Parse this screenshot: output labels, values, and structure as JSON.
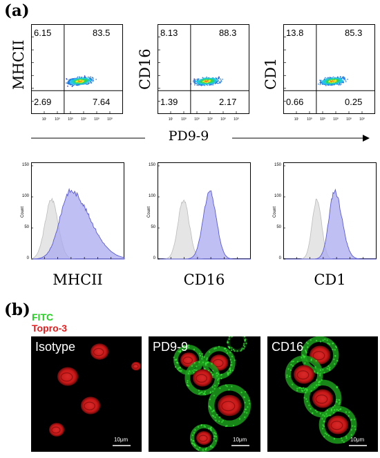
{
  "panel_a_label": "(a)",
  "panel_b_label": "(b)",
  "scatter_axis_label": "PD9-9",
  "dotplots": [
    {
      "ylabel": "MHCII",
      "q_ul": "6.15",
      "q_ur": "83.5",
      "q_ll": "2.69",
      "q_lr": "7.64"
    },
    {
      "ylabel": "CD16",
      "q_ul": "8.13",
      "q_ur": "88.3",
      "q_ll": "1.39",
      "q_lr": "2.17"
    },
    {
      "ylabel": "CD1",
      "q_ul": "13.8",
      "q_ur": "85.3",
      "q_ll": "0.66",
      "q_lr": "0.25"
    }
  ],
  "histograms": [
    {
      "xlabel": "MHCII",
      "ylabel": "Count"
    },
    {
      "xlabel": "CD16",
      "ylabel": "Count"
    },
    {
      "xlabel": "CD1",
      "ylabel": "Count"
    }
  ],
  "histogram_ticks": [
    "0",
    "50",
    "100",
    "150"
  ],
  "legend": {
    "fitc": "FITC",
    "topro": "Topro-3",
    "fitc_color": "#22d11f",
    "topro_color": "#e81c1c"
  },
  "micrographs": [
    {
      "label": "Isotype",
      "scale": "10μm"
    },
    {
      "label": "PD9-9",
      "scale": "10μm"
    },
    {
      "label": "CD16",
      "scale": "10μm"
    }
  ],
  "colors": {
    "hist_fill": "#aaaaf0",
    "hist_stroke": "#5a5ad8",
    "isotype_fill": "#e2e2e2"
  }
}
